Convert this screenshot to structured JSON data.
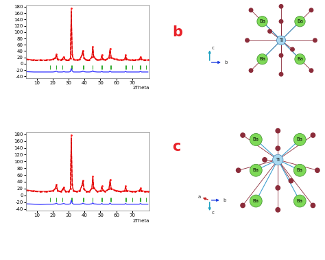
{
  "chart_data": [
    {
      "type": "line",
      "title": "b",
      "x_label": "2Theta",
      "x": [
        3,
        8,
        12,
        16,
        20,
        21.5,
        22.2,
        23,
        25,
        26,
        26.8,
        28,
        30,
        31,
        31.6,
        32.2,
        33,
        35,
        37,
        38.4,
        39,
        39.6,
        41,
        43,
        44.6,
        45.2,
        45.8,
        48,
        50.3,
        50.9,
        51.5,
        53,
        55.4,
        56.1,
        56.8,
        60,
        63,
        65.3,
        65.9,
        66.5,
        70,
        72,
        74.6,
        75.3,
        76,
        78,
        80
      ],
      "series": [
        {
          "color": "#ff2020",
          "line_style": "solid",
          "marker": "dot",
          "values": [
            15,
            12,
            12,
            12,
            14,
            20,
            30,
            14,
            12,
            16,
            22,
            12,
            12,
            18,
            175,
            30,
            14,
            12,
            14,
            30,
            42,
            20,
            12,
            12,
            22,
            55,
            22,
            12,
            14,
            28,
            16,
            12,
            20,
            48,
            20,
            14,
            12,
            14,
            28,
            14,
            12,
            12,
            14,
            22,
            14,
            12,
            12
          ]
        },
        {
          "color": "#d00000",
          "line_style": "dashed",
          "marker": "none",
          "values": [
            13,
            10,
            10,
            10,
            12,
            18,
            27,
            12,
            10,
            14,
            20,
            10,
            10,
            16,
            165,
            27,
            12,
            10,
            12,
            28,
            39,
            18,
            10,
            10,
            20,
            51,
            20,
            10,
            12,
            25,
            14,
            10,
            18,
            45,
            18,
            12,
            10,
            12,
            25,
            12,
            10,
            10,
            12,
            20,
            12,
            10,
            10
          ]
        },
        {
          "color": "#3030ff",
          "line_style": "solid",
          "marker": "none",
          "values": [
            -25,
            -26,
            -26,
            -26,
            -26,
            -25,
            -23,
            -26,
            -26,
            -26,
            -25,
            -26,
            -26,
            -25,
            -15,
            -23,
            -26,
            -26,
            -26,
            -25,
            -23,
            -25,
            -26,
            -26,
            -25,
            -22,
            -25,
            -26,
            -26,
            -24,
            -26,
            -26,
            -26,
            -23,
            -26,
            -26,
            -26,
            -26,
            -24,
            -26,
            -26,
            -26,
            -26,
            -24,
            -26,
            -26,
            -26
          ]
        },
        {
          "type": "scatter",
          "color": "#33aa33",
          "marker": "vline",
          "x": [
            18,
            22.2,
            26,
            31.6,
            32.2,
            38.8,
            39.5,
            45.2,
            50.8,
            51.3,
            56.1,
            56.6,
            65.9,
            66.4,
            70.3,
            74.8,
            75.5,
            79
          ],
          "values": [
            -12,
            -12,
            -12,
            -12,
            -12,
            -12,
            -12,
            -12,
            -12,
            -12,
            -12,
            -12,
            -12,
            -12,
            -12,
            -12,
            -12,
            -12
          ]
        }
      ],
      "xlim": [
        3,
        81
      ],
      "xticks": [
        10,
        20,
        30,
        40,
        50,
        60,
        70
      ],
      "ylim": [
        -45,
        185
      ],
      "yticks": [
        -40,
        -20,
        0,
        20,
        40,
        60,
        80,
        100,
        120,
        140,
        160,
        180
      ]
    },
    {
      "type": "line",
      "title": "c",
      "x_label": "2Theta",
      "x": [
        3,
        8,
        12,
        16,
        20,
        21.5,
        22.2,
        23,
        25,
        26,
        26.8,
        28,
        30,
        31,
        31.6,
        32.2,
        33,
        35,
        37,
        38.4,
        39,
        39.6,
        41,
        43,
        44.6,
        45.2,
        45.8,
        48,
        50.3,
        50.9,
        51.5,
        53,
        55.4,
        56.1,
        56.8,
        60,
        63,
        65.3,
        65.9,
        66.5,
        70,
        72,
        74.6,
        75.3,
        76,
        78,
        80
      ],
      "series": [
        {
          "color": "#ff2020",
          "line_style": "solid",
          "marker": "dot",
          "values": [
            16,
            13,
            12,
            12,
            14,
            21,
            32,
            14,
            12,
            17,
            24,
            12,
            12,
            19,
            178,
            31,
            14,
            12,
            14,
            31,
            44,
            20,
            12,
            12,
            22,
            56,
            22,
            12,
            14,
            27,
            16,
            12,
            20,
            46,
            20,
            14,
            12,
            14,
            27,
            14,
            12,
            12,
            14,
            21,
            14,
            12,
            12
          ]
        },
        {
          "color": "#d00000",
          "line_style": "dashed",
          "marker": "none",
          "values": [
            14,
            11,
            10,
            10,
            12,
            19,
            29,
            12,
            10,
            15,
            22,
            10,
            10,
            17,
            168,
            28,
            12,
            10,
            12,
            29,
            41,
            18,
            10,
            10,
            20,
            52,
            20,
            10,
            12,
            24,
            14,
            10,
            18,
            43,
            18,
            12,
            10,
            12,
            24,
            12,
            10,
            10,
            12,
            19,
            12,
            10,
            10
          ]
        },
        {
          "color": "#3030ff",
          "line_style": "solid",
          "marker": "none",
          "values": [
            -25,
            -26,
            -27,
            -26,
            -26,
            -25,
            -23,
            -26,
            -26,
            -25,
            -24,
            -26,
            -26,
            -25,
            -14,
            -23,
            -26,
            -26,
            -26,
            -25,
            -23,
            -25,
            -26,
            -26,
            -25,
            -22,
            -25,
            -26,
            -26,
            -24,
            -26,
            -26,
            -26,
            -23,
            -26,
            -26,
            -26,
            -26,
            -24,
            -26,
            -26,
            -26,
            -26,
            -24,
            -26,
            -26,
            -26
          ]
        },
        {
          "type": "scatter",
          "color": "#33aa33",
          "marker": "vline",
          "x": [
            18,
            22.2,
            26,
            31.6,
            32.2,
            38.8,
            39.5,
            45.2,
            50.8,
            51.3,
            56.1,
            56.6,
            65.9,
            66.4,
            70.3,
            74.8,
            75.5,
            79
          ],
          "values": [
            -12,
            -12,
            -12,
            -12,
            -12,
            -12,
            -12,
            -12,
            -12,
            -12,
            -12,
            -12,
            -12,
            -12,
            -12,
            -12,
            -12,
            -12
          ]
        }
      ],
      "xlim": [
        3,
        81
      ],
      "xticks": [
        10,
        20,
        30,
        40,
        50,
        60,
        70
      ],
      "ylim": [
        -45,
        185
      ],
      "yticks": [
        -40,
        -20,
        0,
        20,
        40,
        60,
        80,
        100,
        120,
        140,
        160,
        180
      ]
    }
  ],
  "structures": [
    {
      "atom_labels": [
        "Ba",
        "Ba",
        "Ba",
        "Ba",
        "Ti"
      ],
      "axes_labels": [
        "c",
        "b"
      ]
    },
    {
      "atom_labels": [
        "Ba",
        "Ba",
        "Ba",
        "Ba",
        "Ba",
        "Ba",
        "Ti"
      ],
      "axes_labels": [
        "a",
        "b",
        "c"
      ]
    }
  ]
}
